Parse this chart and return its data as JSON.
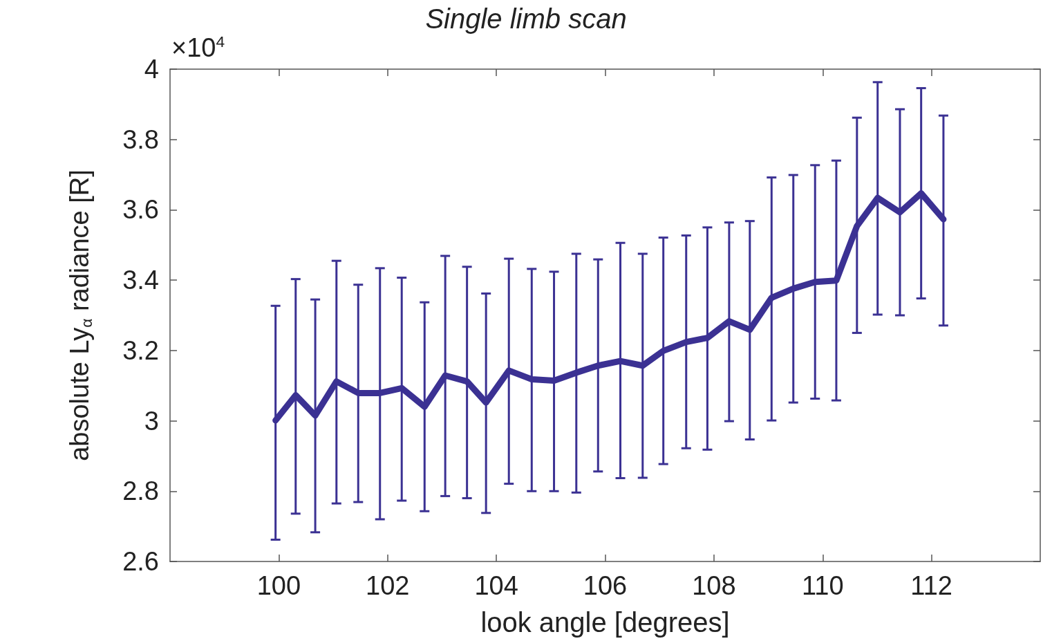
{
  "chart_data": {
    "type": "line",
    "title": "Single limb scan",
    "xlabel": "look angle [degrees]",
    "ylabel": "absolute Ly$_{α}$ radiance [R]",
    "annotations": [
      "×10$^{4}$"
    ],
    "x": [
      99.94,
      100.31,
      100.67,
      101.06,
      101.46,
      101.86,
      102.26,
      102.68,
      103.06,
      103.46,
      103.81,
      104.23,
      104.65,
      105.06,
      105.47,
      105.87,
      106.28,
      106.69,
      107.07,
      107.49,
      107.88,
      108.28,
      108.66,
      109.06,
      109.46,
      109.86,
      110.25,
      110.63,
      111.01,
      111.42,
      111.81,
      112.22
    ],
    "series": [
      {
        "color": "#3b3193",
        "values": [
          3.001,
          3.073,
          3.015,
          3.112,
          3.079,
          3.079,
          3.093,
          3.04,
          3.129,
          3.112,
          3.052,
          3.143,
          3.118,
          3.114,
          3.137,
          3.157,
          3.17,
          3.157,
          3.199,
          3.224,
          3.236,
          3.283,
          3.259,
          3.35,
          3.376,
          3.395,
          3.399,
          3.554,
          3.634,
          3.593,
          3.647,
          3.573
        ],
        "errors": [
          [
            2.662,
            3.327
          ],
          [
            2.736,
            3.403
          ],
          [
            2.683,
            3.345
          ],
          [
            2.765,
            3.455
          ],
          [
            2.769,
            3.387
          ],
          [
            2.72,
            3.434
          ],
          [
            2.773,
            3.407
          ],
          [
            2.743,
            3.337
          ],
          [
            2.786,
            3.469
          ],
          [
            2.78,
            3.438
          ],
          [
            2.738,
            3.362
          ],
          [
            2.821,
            3.461
          ],
          [
            2.8,
            3.432
          ],
          [
            2.8,
            3.424
          ],
          [
            2.796,
            3.475
          ],
          [
            2.856,
            3.459
          ],
          [
            2.837,
            3.506
          ],
          [
            2.838,
            3.475
          ],
          [
            2.877,
            3.521
          ],
          [
            2.922,
            3.527
          ],
          [
            2.918,
            3.55
          ],
          [
            2.999,
            3.564
          ],
          [
            2.947,
            3.568
          ],
          [
            3.001,
            3.692
          ],
          [
            3.052,
            3.699
          ],
          [
            3.063,
            3.727
          ],
          [
            3.058,
            3.74
          ],
          [
            3.25,
            3.862
          ],
          [
            3.302,
            3.963
          ],
          [
            3.3,
            3.886
          ],
          [
            3.348,
            3.946
          ],
          [
            3.271,
            3.868
          ]
        ]
      }
    ],
    "xlim": [
      98,
      114
    ],
    "xticks": [
      100,
      102,
      104,
      106,
      108,
      110,
      112
    ],
    "ylim": [
      2.6,
      4
    ],
    "yticks": [
      2.6,
      2.8,
      3,
      3.2,
      3.4,
      3.6,
      3.8,
      4
    ],
    "grid": false,
    "marker": "none",
    "line_style": "solid"
  }
}
